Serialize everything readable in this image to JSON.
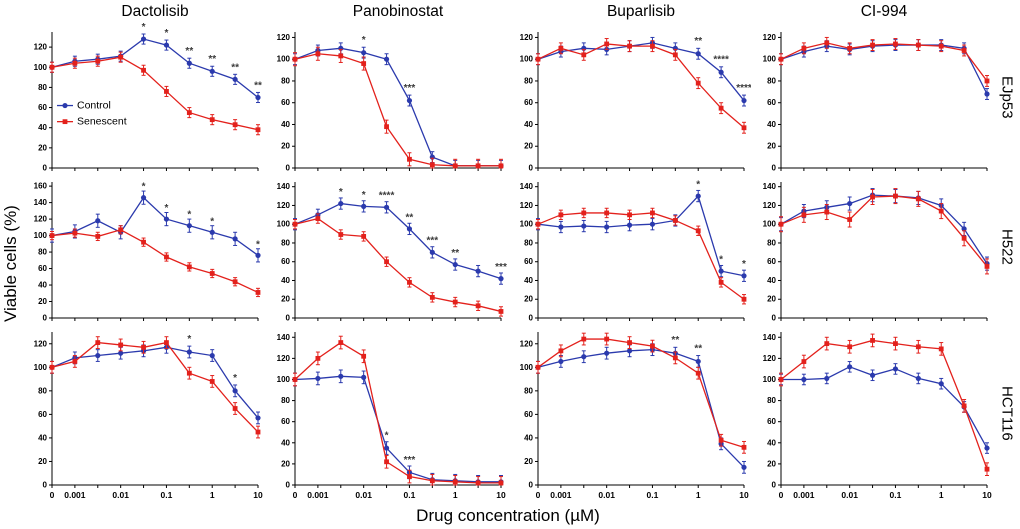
{
  "figure": {
    "column_titles": [
      "Dactolisib",
      "Panobinostat",
      "Buparlisib",
      "CI-994"
    ],
    "row_labels": [
      "EJp53",
      "H522",
      "HCT116"
    ],
    "ylabel": "Viable cells (%)",
    "xlabel": "Drug concentration (µM)",
    "legend": {
      "control": "Control",
      "senescent": "Senescent"
    },
    "colors": {
      "control": "#2b3aad",
      "senescent": "#e3211c",
      "annotation": "#3a3a3a",
      "axis": "#000000"
    },
    "xticks": [
      {
        "xi": 0,
        "label": "0"
      },
      {
        "xi": 1,
        "label": "0.001"
      },
      {
        "xi": 3,
        "label": "0.01"
      },
      {
        "xi": 5,
        "label": "0.1"
      },
      {
        "xi": 7,
        "label": "1"
      },
      {
        "xi": 9,
        "label": "10"
      }
    ]
  },
  "chart_data": [
    {
      "type": "line",
      "drug": "Dactolisib",
      "cell_line": "EJp53",
      "legend": true,
      "x": [
        0,
        0.001,
        0.003,
        0.01,
        0.03,
        0.1,
        0.3,
        1,
        3,
        10
      ],
      "ylim": [
        0,
        135
      ],
      "yticks": [
        0,
        20,
        40,
        60,
        80,
        100,
        120
      ],
      "series": [
        {
          "name": "Control",
          "values": [
            100,
            106,
            108,
            111,
            128,
            122,
            104,
            96,
            88,
            70
          ],
          "err": 5
        },
        {
          "name": "Senescent",
          "values": [
            100,
            104,
            106,
            110,
            97,
            76,
            55,
            48,
            43,
            38
          ],
          "err": 5
        }
      ],
      "annotations": [
        {
          "xi": 4,
          "sig": "*"
        },
        {
          "xi": 5,
          "sig": "*"
        },
        {
          "xi": 6,
          "sig": "**"
        },
        {
          "xi": 7,
          "sig": "**"
        },
        {
          "xi": 8,
          "sig": "**"
        },
        {
          "xi": 9,
          "sig": "**"
        }
      ]
    },
    {
      "type": "line",
      "drug": "Panobinostat",
      "cell_line": "EJp53",
      "x": [
        0,
        0.001,
        0.003,
        0.01,
        0.03,
        0.1,
        0.3,
        1,
        3,
        10
      ],
      "ylim": [
        0,
        125
      ],
      "yticks": [
        0,
        20,
        40,
        60,
        80,
        100,
        120
      ],
      "series": [
        {
          "name": "Control",
          "values": [
            100,
            108,
            110,
            106,
            100,
            62,
            10,
            2,
            2,
            2
          ],
          "err": 5
        },
        {
          "name": "Senescent",
          "values": [
            100,
            105,
            103,
            96,
            38,
            8,
            3,
            2,
            2,
            2
          ],
          "err": 6
        }
      ],
      "annotations": [
        {
          "xi": 3,
          "sig": "*"
        },
        {
          "xi": 5,
          "sig": "***"
        }
      ]
    },
    {
      "type": "line",
      "drug": "Buparlisib",
      "cell_line": "EJp53",
      "x": [
        0,
        0.001,
        0.003,
        0.01,
        0.03,
        0.1,
        0.3,
        1,
        3,
        10
      ],
      "ylim": [
        0,
        125
      ],
      "yticks": [
        0,
        20,
        40,
        60,
        80,
        100,
        120
      ],
      "series": [
        {
          "name": "Control",
          "values": [
            100,
            107,
            110,
            109,
            112,
            115,
            110,
            105,
            88,
            62
          ],
          "err": 5
        },
        {
          "name": "Senescent",
          "values": [
            100,
            110,
            104,
            114,
            112,
            112,
            104,
            78,
            55,
            37
          ],
          "err": 5
        }
      ],
      "annotations": [
        {
          "xi": 7,
          "sig": "**"
        },
        {
          "xi": 8,
          "sig": "****"
        },
        {
          "xi": 9,
          "sig": "****"
        }
      ]
    },
    {
      "type": "line",
      "drug": "CI-994",
      "cell_line": "EJp53",
      "x": [
        0,
        0.001,
        0.003,
        0.01,
        0.03,
        0.1,
        0.3,
        1,
        3,
        10
      ],
      "ylim": [
        0,
        125
      ],
      "yticks": [
        0,
        20,
        40,
        60,
        80,
        100,
        120
      ],
      "series": [
        {
          "name": "Control",
          "values": [
            100,
            107,
            112,
            109,
            112,
            113,
            113,
            113,
            110,
            68
          ],
          "err": 5
        },
        {
          "name": "Senescent",
          "values": [
            100,
            110,
            115,
            110,
            113,
            114,
            113,
            112,
            108,
            80
          ],
          "err": 5
        }
      ],
      "annotations": []
    },
    {
      "type": "line",
      "drug": "Dactolisib",
      "cell_line": "H522",
      "x": [
        0,
        0.001,
        0.003,
        0.01,
        0.03,
        0.1,
        0.3,
        1,
        3,
        10
      ],
      "ylim": [
        0,
        165
      ],
      "yticks": [
        0,
        20,
        40,
        60,
        80,
        100,
        120,
        140,
        160
      ],
      "series": [
        {
          "name": "Control",
          "values": [
            100,
            105,
            118,
            104,
            146,
            120,
            112,
            104,
            96,
            76
          ],
          "err": 8
        },
        {
          "name": "Senescent",
          "values": [
            100,
            103,
            99,
            107,
            92,
            74,
            62,
            54,
            44,
            31
          ],
          "err": 5
        }
      ],
      "annotations": [
        {
          "xi": 4,
          "sig": "*"
        },
        {
          "xi": 5,
          "sig": "*"
        },
        {
          "xi": 6,
          "sig": "*"
        },
        {
          "xi": 7,
          "sig": "*"
        },
        {
          "xi": 9,
          "sig": "*"
        }
      ]
    },
    {
      "type": "line",
      "drug": "Panobinostat",
      "cell_line": "H522",
      "x": [
        0,
        0.001,
        0.003,
        0.01,
        0.03,
        0.1,
        0.3,
        1,
        3,
        10
      ],
      "ylim": [
        0,
        145
      ],
      "yticks": [
        0,
        20,
        40,
        60,
        80,
        100,
        120,
        140
      ],
      "series": [
        {
          "name": "Control",
          "values": [
            100,
            110,
            122,
            119,
            118,
            95,
            70,
            57,
            50,
            42
          ],
          "err": 6
        },
        {
          "name": "Senescent",
          "values": [
            100,
            106,
            89,
            87,
            60,
            38,
            22,
            17,
            13,
            7
          ],
          "err": 5
        }
      ],
      "annotations": [
        {
          "xi": 2,
          "sig": "*"
        },
        {
          "xi": 3,
          "sig": "*"
        },
        {
          "xi": 4,
          "sig": "****"
        },
        {
          "xi": 5,
          "sig": "**"
        },
        {
          "xi": 6,
          "sig": "***"
        },
        {
          "xi": 7,
          "sig": "**"
        },
        {
          "xi": 9,
          "sig": "***"
        }
      ]
    },
    {
      "type": "line",
      "drug": "Buparlisib",
      "cell_line": "H522",
      "x": [
        0,
        0.001,
        0.003,
        0.01,
        0.03,
        0.1,
        0.3,
        1,
        3,
        10
      ],
      "ylim": [
        0,
        145
      ],
      "yticks": [
        0,
        20,
        40,
        60,
        80,
        100,
        120,
        140
      ],
      "series": [
        {
          "name": "Control",
          "values": [
            100,
            97,
            98,
            97,
            99,
            100,
            104,
            130,
            50,
            45
          ],
          "err": 6
        },
        {
          "name": "Senescent",
          "values": [
            100,
            110,
            112,
            112,
            110,
            112,
            104,
            93,
            38,
            20
          ],
          "err": 5
        }
      ],
      "annotations": [
        {
          "xi": 7,
          "sig": "*"
        },
        {
          "xi": 8,
          "sig": "*"
        },
        {
          "xi": 9,
          "sig": "*"
        }
      ]
    },
    {
      "type": "line",
      "drug": "CI-994",
      "cell_line": "H522",
      "x": [
        0,
        0.001,
        0.003,
        0.01,
        0.03,
        0.1,
        0.3,
        1,
        3,
        10
      ],
      "ylim": [
        0,
        145
      ],
      "yticks": [
        0,
        20,
        40,
        60,
        80,
        100,
        120,
        140
      ],
      "series": [
        {
          "name": "Control",
          "values": [
            100,
            114,
            118,
            122,
            131,
            130,
            128,
            120,
            95,
            58
          ],
          "err": 7
        },
        {
          "name": "Senescent",
          "values": [
            100,
            110,
            113,
            105,
            129,
            130,
            127,
            114,
            85,
            55
          ],
          "err": 8
        }
      ],
      "annotations": []
    },
    {
      "type": "line",
      "drug": "Dactolisib",
      "cell_line": "HCT116",
      "x": [
        0,
        0.001,
        0.003,
        0.01,
        0.03,
        0.1,
        0.3,
        1,
        3,
        10
      ],
      "ylim": [
        0,
        130
      ],
      "yticks": [
        0,
        20,
        40,
        60,
        80,
        100,
        120
      ],
      "series": [
        {
          "name": "Control",
          "values": [
            100,
            108,
            110,
            112,
            114,
            117,
            113,
            110,
            80,
            57
          ],
          "err": 5
        },
        {
          "name": "Senescent",
          "values": [
            100,
            105,
            121,
            119,
            117,
            121,
            95,
            88,
            65,
            45
          ],
          "err": 5
        }
      ],
      "annotations": [
        {
          "xi": 6,
          "sig": "*"
        },
        {
          "xi": 8,
          "sig": "*"
        }
      ]
    },
    {
      "type": "line",
      "drug": "Panobinostat",
      "cell_line": "HCT116",
      "x": [
        0,
        0.001,
        0.003,
        0.01,
        0.03,
        0.1,
        0.3,
        1,
        3,
        10
      ],
      "ylim": [
        0,
        145
      ],
      "yticks": [
        0,
        20,
        40,
        60,
        80,
        100,
        120,
        140
      ],
      "series": [
        {
          "name": "Control",
          "values": [
            100,
            101,
            103,
            102,
            35,
            12,
            5,
            4,
            3,
            3
          ],
          "err": 6
        },
        {
          "name": "Senescent",
          "values": [
            100,
            120,
            135,
            122,
            22,
            8,
            4,
            3,
            2,
            2
          ],
          "err": 6
        }
      ],
      "annotations": [
        {
          "xi": 4,
          "sig": "*"
        },
        {
          "xi": 5,
          "sig": "***"
        }
      ]
    },
    {
      "type": "line",
      "drug": "Buparlisib",
      "cell_line": "HCT116",
      "x": [
        0,
        0.001,
        0.003,
        0.01,
        0.03,
        0.1,
        0.3,
        1,
        3,
        10
      ],
      "ylim": [
        0,
        130
      ],
      "yticks": [
        0,
        20,
        40,
        60,
        80,
        100,
        120
      ],
      "series": [
        {
          "name": "Control",
          "values": [
            100,
            105,
            109,
            112,
            114,
            115,
            112,
            105,
            35,
            15
          ],
          "err": 5
        },
        {
          "name": "Senescent",
          "values": [
            100,
            114,
            124,
            124,
            121,
            118,
            108,
            95,
            38,
            32
          ],
          "err": 5
        }
      ],
      "annotations": [
        {
          "xi": 6,
          "sig": "**"
        },
        {
          "xi": 7,
          "sig": "**"
        }
      ]
    },
    {
      "type": "line",
      "drug": "CI-994",
      "cell_line": "HCT116",
      "x": [
        0,
        0.001,
        0.003,
        0.01,
        0.03,
        0.1,
        0.3,
        1,
        3,
        10
      ],
      "ylim": [
        0,
        145
      ],
      "yticks": [
        0,
        20,
        40,
        60,
        80,
        100,
        120,
        140
      ],
      "series": [
        {
          "name": "Control",
          "values": [
            100,
            100,
            101,
            112,
            104,
            110,
            101,
            96,
            74,
            35
          ],
          "err": 5
        },
        {
          "name": "Senescent",
          "values": [
            100,
            117,
            134,
            131,
            137,
            134,
            131,
            129,
            75,
            15
          ],
          "err": 6
        }
      ],
      "annotations": []
    }
  ]
}
